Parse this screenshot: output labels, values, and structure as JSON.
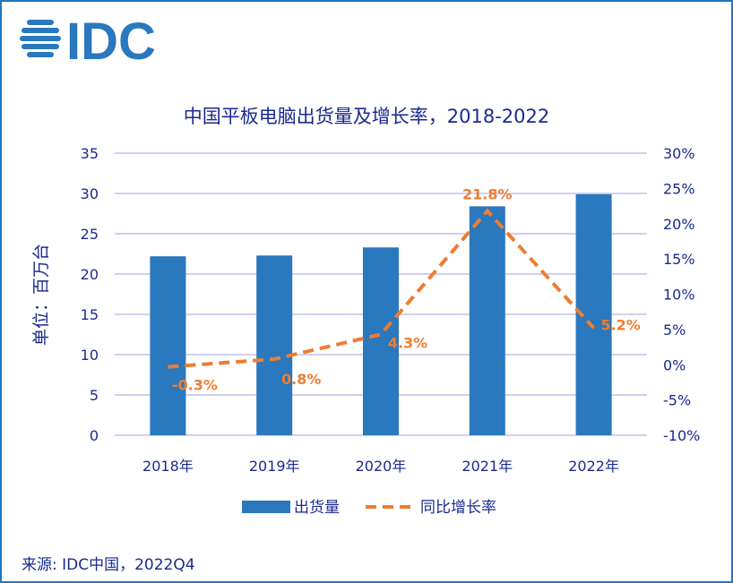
{
  "logo_text": "IDC",
  "title": "中国平板电脑出货量及增长率，2018-2022",
  "source": "来源: IDC中国，2022Q4",
  "colors": {
    "bar": "#2a78bd",
    "line": "#ee7d31",
    "text": "#1a2b8f",
    "grid": "#b4b4e6",
    "border": "#1f78c1"
  },
  "chart_data": {
    "type": "bar+line",
    "title": "中国平板电脑出货量及增长率，2018-2022",
    "categories": [
      "2018年",
      "2019年",
      "2020年",
      "2021年",
      "2022年"
    ],
    "ylabel": "单位：百万台",
    "ylim": [
      0,
      35
    ],
    "yticks": [
      "0",
      "5",
      "10",
      "15",
      "20",
      "25",
      "30",
      "35"
    ],
    "y2lim": [
      -10,
      30
    ],
    "y2ticks": [
      "-10%",
      "-5%",
      "0%",
      "5%",
      "10%",
      "15%",
      "20%",
      "25%",
      "30%"
    ],
    "grid": true,
    "legend_position": "bottom",
    "series": [
      {
        "name": "出货量",
        "type": "bar",
        "values": [
          22.2,
          22.3,
          23.3,
          28.4,
          29.9
        ]
      },
      {
        "name": "同比增长率",
        "type": "line",
        "style": "dashed",
        "axis": "right",
        "values": [
          -0.3,
          0.8,
          4.3,
          21.8,
          5.2
        ],
        "labels": [
          "-0.3%",
          "0.8%",
          "4.3%",
          "21.8%",
          "5.2%"
        ]
      }
    ]
  }
}
